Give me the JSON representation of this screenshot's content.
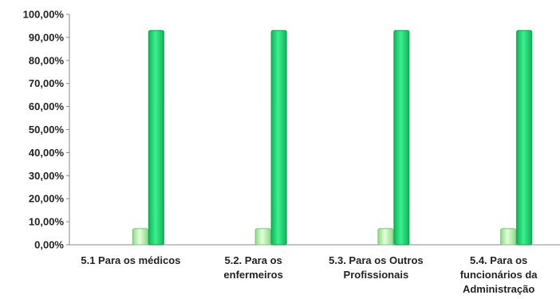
{
  "chart_data": {
    "type": "bar",
    "categories": [
      [
        "5.1 Para os médicos"
      ],
      [
        "5.2. Para os",
        "enfermeiros"
      ],
      [
        "5.3. Para os Outros",
        "Profissionais"
      ],
      [
        "5.4. Para os",
        "funcionários da",
        "Administração"
      ]
    ],
    "series": [
      {
        "values": [
          0.0,
          0.0,
          0.0,
          0.0
        ],
        "color": "#1f77b4"
      },
      {
        "values": [
          7.0,
          7.0,
          7.0,
          7.0
        ],
        "color": "#b6f0a8"
      },
      {
        "values": [
          93.0,
          93.0,
          93.0,
          93.0
        ],
        "color": "#22dd77"
      }
    ],
    "y_ticks": [
      "0,00%",
      "10,00%",
      "20,00%",
      "30,00%",
      "40,00%",
      "50,00%",
      "60,00%",
      "70,00%",
      "80,00%",
      "90,00%",
      "100,00%"
    ],
    "ylim": [
      0,
      100
    ],
    "title": "",
    "xlabel": "",
    "ylabel": "",
    "grid": false,
    "legend": "none"
  }
}
